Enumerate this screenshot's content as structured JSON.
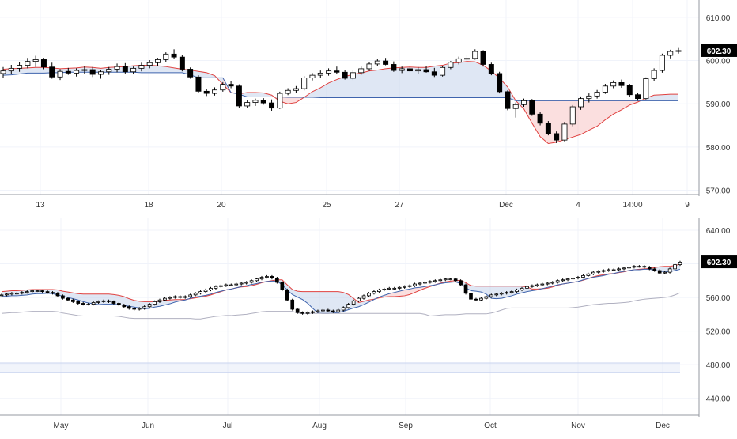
{
  "colors": {
    "grid": "#f0f3fa",
    "axis_text": "#333333",
    "up_body": "#ffffff",
    "candle": "#000000",
    "cloud_bear_fill": "#f6b7b7",
    "cloud_bear_line": "#e0413f",
    "cloud_bull_fill": "#b8c9e6",
    "cloud_bull_line": "#3f64ad",
    "kijun_fill": "#f9c9c9",
    "tenkan_fill": "#7e9bd3",
    "ref_band": "#d7dff3",
    "price_badge_bg": "#000000",
    "price_badge_text": "#ffffff"
  },
  "chart_data": [
    {
      "id": "intraday",
      "type": "candlestick-ichimoku",
      "x_ticks": [
        "13",
        "18",
        "20",
        "25",
        "27",
        "Dec",
        "4",
        "14:00",
        "9"
      ],
      "y_ticks": [
        "570.00",
        "580.00",
        "590.00",
        "600.00",
        "610.00"
      ],
      "ylim": [
        569,
        614
      ],
      "last_price": "602.30",
      "grid": true,
      "candles": [
        [
          597,
          598.5,
          596,
          597.6
        ],
        [
          597.6,
          599,
          596.8,
          598.2
        ],
        [
          598.2,
          599.6,
          597.4,
          598.9
        ],
        [
          598.9,
          600.6,
          598.2,
          599.8
        ],
        [
          599.8,
          601.1,
          598.5,
          600.2
        ],
        [
          600.2,
          600.6,
          598,
          598.5
        ],
        [
          598.5,
          599.5,
          595.8,
          596.2
        ],
        [
          596.2,
          598,
          595.5,
          597.5
        ],
        [
          597.5,
          598.3,
          596.7,
          597.1
        ],
        [
          597.1,
          598.2,
          596.3,
          597.7
        ],
        [
          597.7,
          598.8,
          596.9,
          597.9
        ],
        [
          597.9,
          598.5,
          596.2,
          596.8
        ],
        [
          596.8,
          597.9,
          595.8,
          597.4
        ],
        [
          597.4,
          598.5,
          596.7,
          598
        ],
        [
          598,
          599.3,
          597.3,
          598.6
        ],
        [
          598.6,
          599.4,
          597,
          597.4
        ],
        [
          597.4,
          598.6,
          596.8,
          598.2
        ],
        [
          598.2,
          599.5,
          597.5,
          598.9
        ],
        [
          598.9,
          600.1,
          598.2,
          599.5
        ],
        [
          599.5,
          600.6,
          598.8,
          600.2
        ],
        [
          600.2,
          601.9,
          599.7,
          601.5
        ],
        [
          601.5,
          602.6,
          600.4,
          600.8
        ],
        [
          600.8,
          601.2,
          597.5,
          598
        ],
        [
          598,
          598.4,
          595.8,
          596.2
        ],
        [
          596.2,
          596.6,
          592.5,
          592.9
        ],
        [
          592.9,
          593.4,
          591.8,
          592.4
        ],
        [
          592.4,
          593.8,
          591.9,
          593.2
        ],
        [
          593.2,
          595,
          592.8,
          594.5
        ],
        [
          594.5,
          595.3,
          593.6,
          594.1
        ],
        [
          594.1,
          594.5,
          589,
          589.5
        ],
        [
          589.5,
          590.8,
          589,
          590.3
        ],
        [
          590.3,
          591.2,
          589.5,
          590.8
        ],
        [
          590.8,
          591.3,
          589.8,
          590.2
        ],
        [
          590.2,
          591,
          588.4,
          589
        ],
        [
          589,
          592.8,
          588.8,
          592.4
        ],
        [
          592.4,
          593.6,
          592,
          593.1
        ],
        [
          593.1,
          594.1,
          592.6,
          593.5
        ],
        [
          593.5,
          596.4,
          593.1,
          596
        ],
        [
          596,
          597.1,
          595.4,
          596.6
        ],
        [
          596.6,
          597.7,
          596,
          597.1
        ],
        [
          597.1,
          598.2,
          596.5,
          597.6
        ],
        [
          597.6,
          598.6,
          596.8,
          597.3
        ],
        [
          597.3,
          597.8,
          595.6,
          595.9
        ],
        [
          595.9,
          597.7,
          595.5,
          597.2
        ],
        [
          597.2,
          598.6,
          596.7,
          598.1
        ],
        [
          598.1,
          599.7,
          597.6,
          599.2
        ],
        [
          599.2,
          600.4,
          598.7,
          599.9
        ],
        [
          599.9,
          600.6,
          598.9,
          599.1
        ],
        [
          599.1,
          599.8,
          597.4,
          597.7
        ],
        [
          597.7,
          598.6,
          597.1,
          598.1
        ],
        [
          598.1,
          598.8,
          597.3,
          597.6
        ],
        [
          597.6,
          598.5,
          596.9,
          597.9
        ],
        [
          597.9,
          598.7,
          597.2,
          597.4
        ],
        [
          597.4,
          598.3,
          596.2,
          596.6
        ],
        [
          596.6,
          598.8,
          596.3,
          598.4
        ],
        [
          598.4,
          599.9,
          598,
          599.6
        ],
        [
          599.6,
          600.9,
          599.1,
          600.4
        ],
        [
          600.4,
          601.2,
          599.8,
          600.5
        ],
        [
          600.5,
          602.6,
          600.2,
          602.1
        ],
        [
          602.1,
          602.4,
          598.6,
          599.1
        ],
        [
          599.1,
          599.5,
          596.6,
          597
        ],
        [
          597,
          597.4,
          592.4,
          592.8
        ],
        [
          592.8,
          593.1,
          588.5,
          588.9
        ],
        [
          588.9,
          590.3,
          586.8,
          589.8
        ],
        [
          589.8,
          591.2,
          589.3,
          590.7
        ],
        [
          590.7,
          591.1,
          587.2,
          587.6
        ],
        [
          587.6,
          588.1,
          585,
          585.5
        ],
        [
          585.5,
          586,
          582.7,
          583.1
        ],
        [
          583.1,
          583.6,
          580.9,
          581.6
        ],
        [
          581.6,
          585.8,
          581.3,
          585.3
        ],
        [
          585.3,
          589.7,
          584.8,
          589.3
        ],
        [
          589.3,
          591.7,
          588.6,
          591.2
        ],
        [
          591.2,
          592.4,
          590.3,
          591.8
        ],
        [
          591.8,
          593.2,
          591.2,
          592.7
        ],
        [
          592.7,
          594.6,
          592.3,
          594.1
        ],
        [
          594.1,
          595.4,
          593.6,
          594.9
        ],
        [
          594.9,
          595.6,
          593.7,
          594.2
        ],
        [
          594.2,
          594.6,
          591.6,
          592.1
        ],
        [
          592.1,
          592.6,
          590.7,
          591.2
        ],
        [
          591.2,
          596.1,
          591,
          595.8
        ],
        [
          595.8,
          598.2,
          595.3,
          597.7
        ],
        [
          597.7,
          601.6,
          597.2,
          601.2
        ],
        [
          601.2,
          602.5,
          600.5,
          602.1
        ],
        [
          602.1,
          602.9,
          601.6,
          602.3
        ]
      ],
      "cloud_a": [
        598,
        598.1,
        598.2,
        598.3,
        598.4,
        598.4,
        598.3,
        598.1,
        598.2,
        598.3,
        598.5,
        598.4,
        598.2,
        598.4,
        598.5,
        598.6,
        598.8,
        598.9,
        598.9,
        598.8,
        598.6,
        598.3,
        598,
        597.8,
        597.5,
        597.2,
        596.5,
        594.5,
        592.6,
        592.3,
        592.6,
        592.6,
        592.5,
        592,
        590.6,
        590,
        590.3,
        591.5,
        592.8,
        593.7,
        594.8,
        595.6,
        596.3,
        596.8,
        597.1,
        597.6,
        597.8,
        598.1,
        598.3,
        598.4,
        598.5,
        598.4,
        598.4,
        598.7,
        598.9,
        599.4,
        599.5,
        599.8,
        599.7,
        598.9,
        597.6,
        595.9,
        593.9,
        590.7,
        588.8,
        585.5,
        582.4,
        580.8,
        581.1,
        581.7,
        582.3,
        582.9,
        583.9,
        584.8,
        586.3,
        587.6,
        588.6,
        589.7,
        590.4,
        591.3,
        592,
        592.1,
        592.2,
        592.2
      ],
      "cloud_b": [
        596.6,
        596.7,
        596.9,
        597.1,
        597.1,
        597.1,
        597.2,
        597.2,
        597.3,
        597.3,
        597.3,
        597.3,
        597.3,
        597.3,
        597.3,
        597.3,
        597.3,
        597.2,
        597.2,
        597.2,
        597.2,
        597.2,
        597.2,
        596.7,
        596,
        596,
        596,
        596,
        592.6,
        592.2,
        591.6,
        591.6,
        591.6,
        591.6,
        591.6,
        591.5,
        591.5,
        591.5,
        591.5,
        591.4,
        591.4,
        591.4,
        591.4,
        591.4,
        591.4,
        591.4,
        591.4,
        591.4,
        591.4,
        591.4,
        591.4,
        591.4,
        591.4,
        591.4,
        591.4,
        591.4,
        591.4,
        591.4,
        591.4,
        591.4,
        591.4,
        591.4,
        591.4,
        590.7,
        590.7,
        590.7,
        590.7,
        590.7,
        590.7,
        590.7,
        590.7,
        590.7,
        590.7,
        590.7,
        590.7,
        590.7,
        590.7,
        590.7,
        590.7,
        590.7,
        590.7,
        590.7,
        590.7,
        590.7
      ]
    },
    {
      "id": "daily",
      "type": "candlestick-ichimoku",
      "x_ticks": [
        "May",
        "Jun",
        "Jul",
        "Aug",
        "Sep",
        "Oct",
        "Nov",
        "Dec"
      ],
      "y_ticks": [
        "440.00",
        "480.00",
        "520.00",
        "560.00",
        "600.00",
        "640.00"
      ],
      "ylim": [
        420,
        655
      ],
      "last_price": "602.30",
      "grid": true,
      "close": [
        563,
        564,
        565,
        565,
        566,
        567,
        568,
        568,
        567,
        566,
        565,
        562,
        559,
        557,
        555,
        553,
        552,
        552,
        554,
        555,
        556,
        555,
        553,
        551,
        549,
        547,
        546,
        547,
        549,
        552,
        555,
        557,
        559,
        560,
        561,
        560,
        561,
        563,
        565,
        567,
        569,
        571,
        573,
        574,
        575,
        575,
        576,
        577,
        578,
        580,
        582,
        584,
        585,
        583,
        578,
        569,
        557,
        546,
        542,
        541,
        542,
        543,
        544,
        545,
        544,
        543,
        545,
        548,
        552,
        556,
        559,
        562,
        565,
        567,
        569,
        570,
        571,
        571,
        572,
        573,
        574,
        576,
        577,
        578,
        579,
        580,
        581,
        582,
        582,
        580,
        575,
        565,
        558,
        557,
        559,
        561,
        563,
        564,
        565,
        566,
        567,
        569,
        571,
        573,
        574,
        575,
        576,
        577,
        578,
        580,
        581,
        582,
        583,
        584,
        586,
        588,
        590,
        591,
        592,
        593,
        593,
        594,
        595,
        596,
        597,
        597,
        596,
        594,
        592,
        589,
        590,
        594,
        599,
        602
      ]
    }
  ]
}
